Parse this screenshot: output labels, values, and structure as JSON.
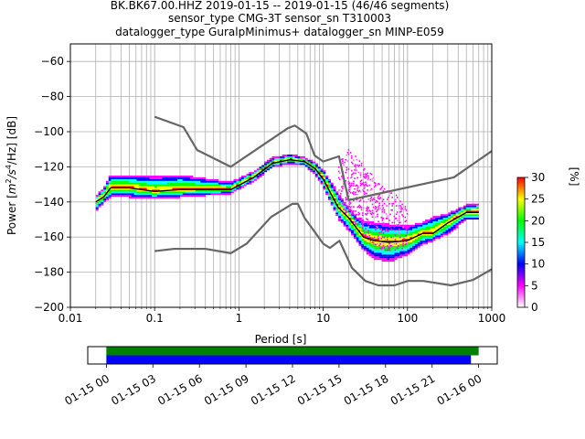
{
  "title_lines": [
    "BK.BK67.00.HHZ   2019-01-15 -- 2019-01-15  (46/46 segments)",
    "sensor_type CMG-3T sensor_sn T310003",
    "datalogger_type GuralpMinimus+ datalogger_sn MINP-E059"
  ],
  "chart_data": {
    "type": "heatmap",
    "xlabel": "Period [s]",
    "ylabel_prefix": "Power [",
    "ylabel_m": "m",
    "ylabel_s": "/s",
    "ylabel_hz": "/Hz] [dB]",
    "ylabel_exp1": "2",
    "ylabel_exp2": "4",
    "x_scale": "log",
    "xlim": [
      0.01,
      1000
    ],
    "ylim": [
      -200,
      -50
    ],
    "x_ticks": [
      0.01,
      0.1,
      1,
      10,
      100,
      1000
    ],
    "x_tick_labels": [
      "0.01",
      "0.1",
      "1",
      "10",
      "100",
      "1000"
    ],
    "y_ticks": [
      -200,
      -180,
      -160,
      -140,
      -120,
      -100,
      -80,
      -60
    ],
    "y_tick_labels": [
      "−200",
      "−180",
      "−160",
      "−140",
      "−120",
      "−100",
      "−80",
      "−60"
    ],
    "grid": true,
    "colorbar": {
      "label": "[%]",
      "range": [
        0,
        30
      ],
      "ticks": [
        0,
        5,
        10,
        15,
        20,
        25,
        30
      ],
      "tick_labels": [
        "0",
        "5",
        "10",
        "15",
        "20",
        "25",
        "30"
      ],
      "colors": [
        "#ffffff",
        "#ff00ff",
        "#0000ff",
        "#00ffff",
        "#00ff00",
        "#ffff00",
        "#ff0000"
      ]
    },
    "noise_model_high": {
      "color": "#666666",
      "x": [
        0.1,
        0.22,
        0.32,
        0.8,
        3.8,
        4.6,
        6.3,
        7.9,
        10,
        15.4,
        20,
        354.8,
        1000
      ],
      "y": [
        -91.5,
        -97.4,
        -110.5,
        -120,
        -98,
        -96.5,
        -101,
        -113.5,
        -117,
        -114,
        -139,
        -126,
        -111
      ]
    },
    "noise_model_low": {
      "color": "#666666",
      "x": [
        0.1,
        0.17,
        0.4,
        0.8,
        1.24,
        2.4,
        4.3,
        5,
        6,
        10,
        12,
        15.6,
        21.9,
        31.6,
        45,
        70,
        101,
        154,
        328,
        600,
        1000
      ],
      "y": [
        -168,
        -166.7,
        -166.7,
        -169.2,
        -163.7,
        -148.6,
        -141.1,
        -141.1,
        -149,
        -163.8,
        -166.2,
        -162.1,
        -177.5,
        -185,
        -187.5,
        -187.5,
        -185,
        -185,
        -187.5,
        -184.4,
        -178.3
      ]
    },
    "mode_curve": {
      "color": "#000000",
      "x": [
        0.02,
        0.025,
        0.03,
        0.05,
        0.1,
        0.2,
        0.4,
        0.8,
        1.5,
        2.5,
        4,
        6,
        8,
        10,
        15,
        20,
        25,
        30,
        40,
        60,
        100,
        150,
        200,
        300,
        500,
        700
      ],
      "y": [
        -140,
        -137,
        -132,
        -132,
        -134,
        -133,
        -133,
        -133,
        -126,
        -118,
        -116,
        -117,
        -121,
        -127,
        -143,
        -149,
        -155,
        -160,
        -162,
        -163,
        -162,
        -158,
        -158,
        -152,
        -146,
        -146
      ]
    },
    "spread_upper": {
      "x": [
        0.02,
        0.025,
        0.03,
        0.05,
        0.1,
        0.2,
        0.4,
        0.8,
        1.5,
        2.5,
        4,
        6,
        8,
        10,
        15,
        20,
        25,
        30,
        40,
        60,
        100,
        150,
        200,
        300,
        500,
        700
      ],
      "y": [
        -138,
        -133,
        -126,
        -126,
        -127,
        -126,
        -128,
        -130,
        -124,
        -116,
        -114,
        -116,
        -119,
        -123,
        -136,
        -145,
        -150,
        -152,
        -153,
        -154,
        -155,
        -153,
        -150,
        -148,
        -143,
        -142
      ]
    },
    "spread_lower": {
      "x": [
        0.02,
        0.025,
        0.03,
        0.05,
        0.1,
        0.2,
        0.4,
        0.8,
        1.5,
        2.5,
        4,
        6,
        8,
        10,
        15,
        20,
        25,
        30,
        40,
        60,
        100,
        150,
        200,
        300,
        500,
        700
      ],
      "y": [
        -145,
        -140,
        -137,
        -137,
        -138,
        -137,
        -136,
        -135,
        -128,
        -120,
        -118,
        -119,
        -124,
        -131,
        -149,
        -156,
        -162,
        -167,
        -172,
        -174,
        -170,
        -164,
        -162,
        -158,
        -150,
        -150
      ]
    },
    "outlier_band": {
      "x": [
        15,
        20,
        30,
        50,
        80,
        100
      ],
      "y_top": [
        -118,
        -110,
        -120,
        -132,
        -138,
        -146
      ],
      "y_bottom": [
        -140,
        -150,
        -160,
        -168,
        -168,
        -165
      ]
    }
  },
  "timeline": {
    "tick_labels": [
      "01-15 00",
      "01-15 03",
      "01-15 06",
      "01-15 09",
      "01-15 12",
      "01-15 15",
      "01-15 18",
      "01-15 21",
      "01-16 00"
    ],
    "tick_hours": [
      0,
      3,
      6,
      9,
      12,
      15,
      18,
      21,
      24
    ],
    "range_hours": [
      -1.2,
      25.2
    ],
    "bars": [
      {
        "color": "#008000",
        "start_hour": 0,
        "end_hour": 24.0
      },
      {
        "color": "#0000ff",
        "start_hour": 0,
        "end_hour": 23.5
      }
    ]
  }
}
